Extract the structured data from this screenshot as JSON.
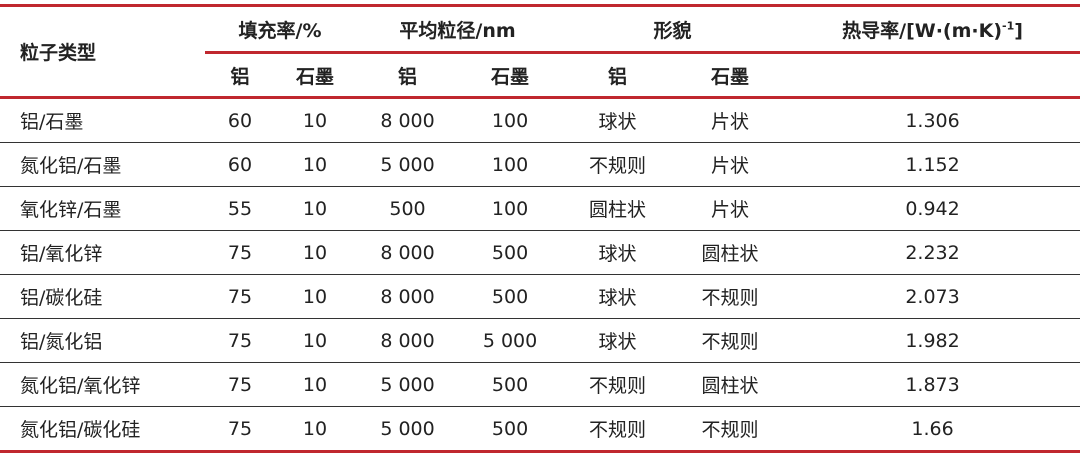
{
  "header": {
    "particle_type": "粒子类型",
    "fill_rate": "填充率/%",
    "avg_size": "平均粒径/nm",
    "morphology": "形貌",
    "conductivity": "热导率/[W·(m·K)",
    "conductivity_exp": "-1",
    "conductivity_close": "]",
    "sub": [
      "铝",
      "石墨",
      "铝",
      "石墨",
      "铝",
      "石墨"
    ]
  },
  "rows": [
    [
      "铝/石墨",
      "60",
      "10",
      "8 000",
      "100",
      "球状",
      "片状",
      "1.306"
    ],
    [
      "氮化铝/石墨",
      "60",
      "10",
      "5 000",
      "100",
      "不规则",
      "片状",
      "1.152"
    ],
    [
      "氧化锌/石墨",
      "55",
      "10",
      "500",
      "100",
      "圆柱状",
      "片状",
      "0.942"
    ],
    [
      "铝/氧化锌",
      "75",
      "10",
      "8 000",
      "500",
      "球状",
      "圆柱状",
      "2.232"
    ],
    [
      "铝/碳化硅",
      "75",
      "10",
      "8 000",
      "500",
      "球状",
      "不规则",
      "2.073"
    ],
    [
      "铝/氮化铝",
      "75",
      "10",
      "8 000",
      "5 000",
      "球状",
      "不规则",
      "1.982"
    ],
    [
      "氮化铝/氧化锌",
      "75",
      "10",
      "5 000",
      "500",
      "不规则",
      "圆柱状",
      "1.873"
    ],
    [
      "氮化铝/碳化硅",
      "75",
      "10",
      "5 000",
      "500",
      "不规则",
      "不规则",
      "1.66"
    ]
  ],
  "colors": {
    "rule": "#c0282e",
    "separator": "#333333"
  }
}
